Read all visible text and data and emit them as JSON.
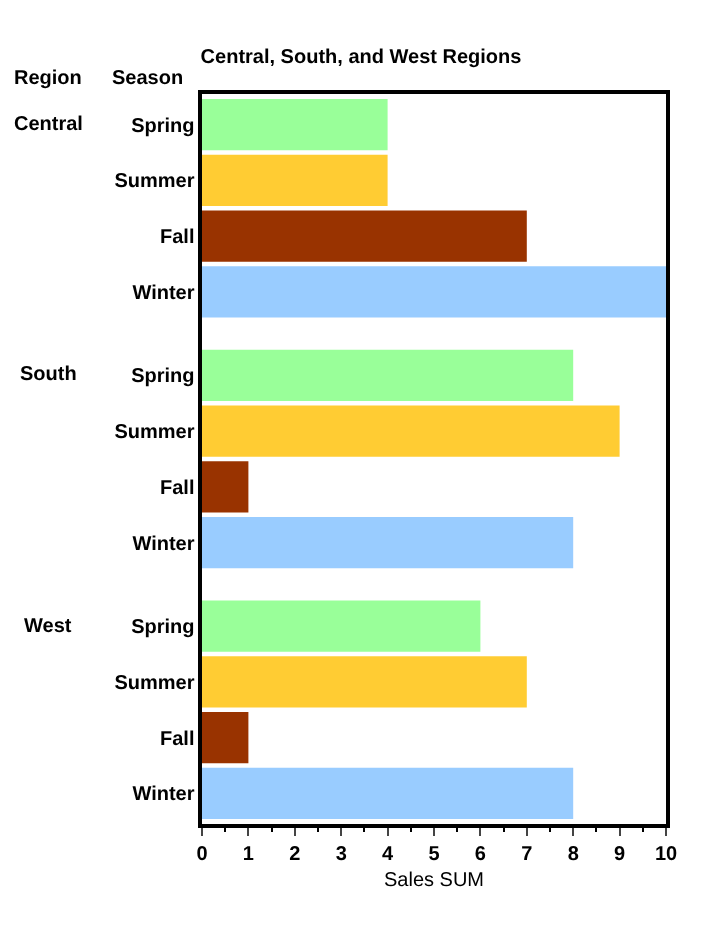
{
  "chart_data": {
    "type": "bar",
    "orientation": "horizontal",
    "title": "Central, South, and West Regions",
    "xlabel": "Sales SUM",
    "ylabel": "Season",
    "categories": [
      "Spring",
      "Summer",
      "Fall",
      "Winter",
      "Spring",
      "Summer",
      "Fall",
      "Winter",
      "Spring",
      "Summer",
      "Fall",
      "Winter"
    ],
    "values": [
      4,
      4,
      7,
      10,
      8,
      9,
      1,
      8,
      6,
      7,
      1,
      8
    ],
    "colors": [
      "#99ff99",
      "#ffcc33",
      "#993300",
      "#99ccff",
      "#99ff99",
      "#ffcc33",
      "#993300",
      "#99ccff",
      "#99ff99",
      "#ffcc33",
      "#993300",
      "#99ccff"
    ],
    "annotations": [
      "Region",
      "Central",
      "South",
      "West"
    ],
    "xlim": [
      0,
      10
    ],
    "xticks": [
      0,
      1,
      2,
      3,
      4,
      5,
      6,
      7,
      8,
      9,
      10
    ]
  }
}
